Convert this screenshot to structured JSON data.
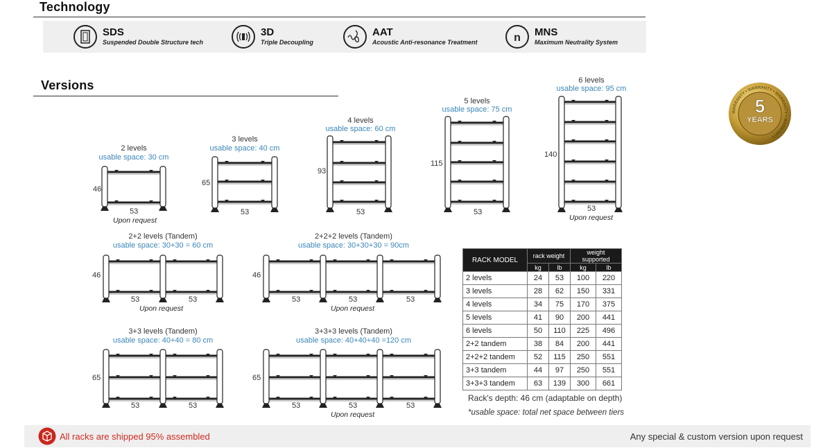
{
  "sections": {
    "technology": "Technology",
    "versions": "Versions"
  },
  "tech": [
    {
      "code": "SDS",
      "desc": "Suspended Double Structure tech",
      "icon": "sds-icon"
    },
    {
      "code": "3D",
      "desc": "Triple Decoupling",
      "icon": "decoupling-icon"
    },
    {
      "code": "AAT",
      "desc": "Acoustic Anti-resonance Treatment",
      "icon": "treble-clef-icon"
    },
    {
      "code": "MNS",
      "desc": "Maximum Neutrality System",
      "icon": "n-icon"
    }
  ],
  "versions": [
    {
      "title": "2 levels",
      "space": "usable space: 30 cm",
      "height": "46",
      "width": "53",
      "note": "Upon request"
    },
    {
      "title": "3 levels",
      "space": "usable space: 40 cm",
      "height": "65",
      "width": "53"
    },
    {
      "title": "4 levels",
      "space": "usable space: 60 cm",
      "height": "93",
      "width": "53"
    },
    {
      "title": "5 levels",
      "space": "usable space: 75 cm",
      "height": "115",
      "width": "53"
    },
    {
      "title": "6 levels",
      "space": "usable space: 95 cm",
      "height": "140",
      "width": "53",
      "note": "Upon request"
    },
    {
      "title": "2+2 levels (Tandem)",
      "space": "usable space: 30+30 = 60 cm",
      "height": "46",
      "widths": [
        "53",
        "53"
      ],
      "note": "Upon request"
    },
    {
      "title": "2+2+2 levels (Tandem)",
      "space": "usable space: 30+30+30 = 90cm",
      "height": "46",
      "widths": [
        "53",
        "53",
        "53"
      ],
      "note": "Upon request"
    },
    {
      "title": "3+3 levels (Tandem)",
      "space": "usable space: 40+40 = 80 cm",
      "height": "65",
      "widths": [
        "53",
        "53"
      ]
    },
    {
      "title": "3+3+3 levels (Tandem)",
      "space": "usable space: 40+40+40 =120 cm",
      "height": "65",
      "widths": [
        "53",
        "53",
        "53"
      ],
      "note": "Upon request"
    }
  ],
  "table": {
    "header": {
      "model": "RACK MODEL",
      "rack_weight": "rack weight",
      "weight_supported": "weight supported",
      "kg": "kg",
      "lb": "lb"
    },
    "rows": [
      [
        "2 levels",
        "24",
        "53",
        "100",
        "220"
      ],
      [
        "3 levels",
        "28",
        "62",
        "150",
        "331"
      ],
      [
        "4 levels",
        "34",
        "75",
        "170",
        "375"
      ],
      [
        "5 levels",
        "41",
        "90",
        "200",
        "441"
      ],
      [
        "6 levels",
        "50",
        "110",
        "225",
        "496"
      ],
      [
        "2+2 tandem",
        "38",
        "84",
        "200",
        "441"
      ],
      [
        "2+2+2 tandem",
        "52",
        "115",
        "250",
        "551"
      ],
      [
        "3+3 tandem",
        "44",
        "97",
        "250",
        "551"
      ],
      [
        "3+3+3 tandem",
        "63",
        "139",
        "300",
        "661"
      ]
    ]
  },
  "depth_note": "Rack's depth: 46 cm (adaptable on depth)",
  "space_note": "*usable space: total net space between tiers",
  "badge": {
    "number": "5",
    "label": "YEARS",
    "ring": "WARRANTY"
  },
  "footer": {
    "shipped": "All racks are shipped 95% assembled",
    "custom": "Any special & custom version upon request"
  }
}
